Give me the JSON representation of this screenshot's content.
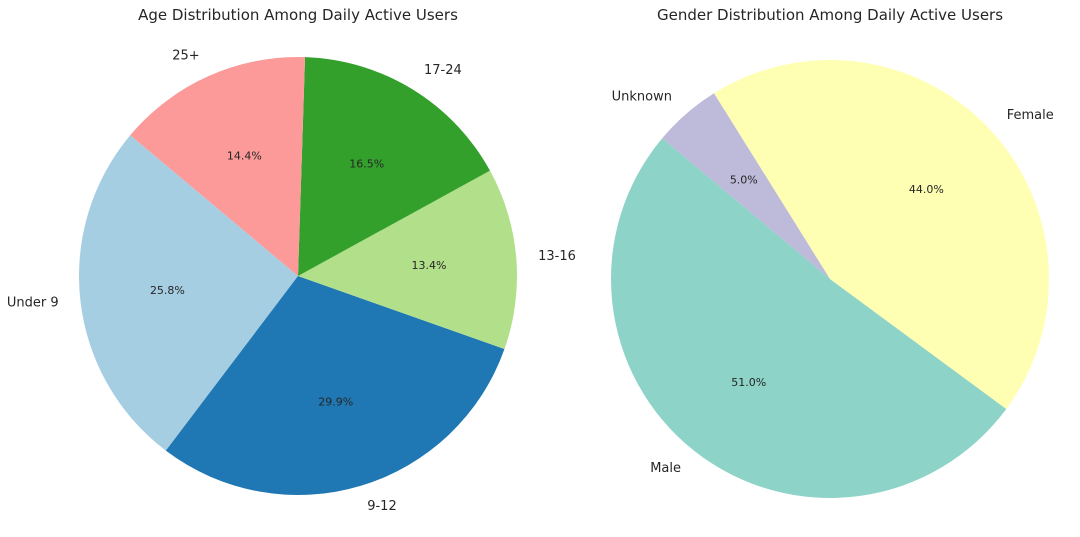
{
  "chart_data": [
    {
      "type": "pie",
      "title": "Age Distribution Among Daily Active Users",
      "start_angle_deg": 140,
      "direction": "counterclockwise",
      "slices": [
        {
          "label": "Under 9",
          "value": 25.8,
          "pct_text": "25.8%",
          "color": "#a6cee3"
        },
        {
          "label": "9-12",
          "value": 29.9,
          "pct_text": "29.9%",
          "color": "#1f78b4"
        },
        {
          "label": "13-16",
          "value": 13.4,
          "pct_text": "13.4%",
          "color": "#b2df8a"
        },
        {
          "label": "17-24",
          "value": 16.5,
          "pct_text": "16.5%",
          "color": "#33a02c"
        },
        {
          "label": "25+",
          "value": 14.4,
          "pct_text": "14.4%",
          "color": "#fb9a99"
        }
      ]
    },
    {
      "type": "pie",
      "title": "Gender Distribution Among Daily Active Users",
      "start_angle_deg": 140,
      "direction": "counterclockwise",
      "slices": [
        {
          "label": "Male",
          "value": 51.0,
          "pct_text": "51.0%",
          "color": "#8dd3c7"
        },
        {
          "label": "Female",
          "value": 44.0,
          "pct_text": "44.0%",
          "color": "#ffffb3"
        },
        {
          "label": "Unknown",
          "value": 5.0,
          "pct_text": "5.0%",
          "color": "#bebada"
        }
      ]
    }
  ]
}
